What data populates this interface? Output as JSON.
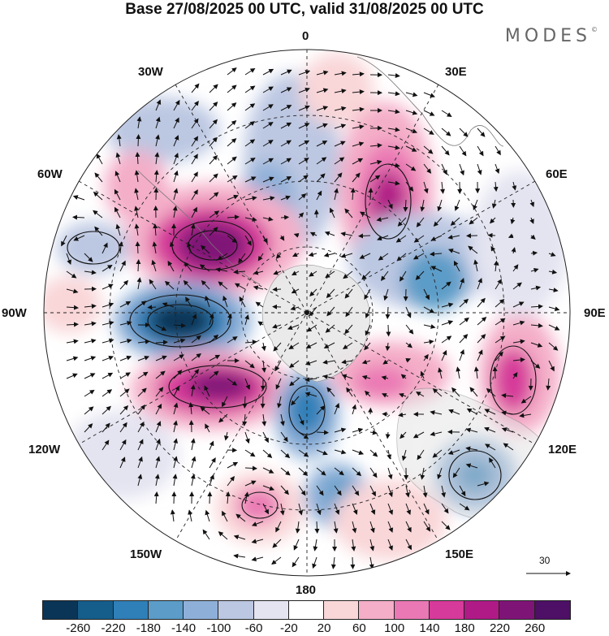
{
  "header": {
    "title": "Base 27/08/2025 00 UTC, valid 31/08/2025 00 UTC",
    "brand": "MODES"
  },
  "map": {
    "projection": "south polar stereographic",
    "longitude_labels": {
      "top": "0",
      "top_right": "30E",
      "right_upper": "60E",
      "right": "90E",
      "right_lower": "120E",
      "bottom_right": "150E",
      "bottom": "180",
      "bottom_left": "150W",
      "left_lower": "120W",
      "left": "90W",
      "left_upper": "60W",
      "top_left": "30W"
    },
    "vector_reference": "30"
  },
  "colorbar": {
    "ticks": [
      "-260",
      "-220",
      "-180",
      "-140",
      "-100",
      "-60",
      "-20",
      "20",
      "60",
      "100",
      "140",
      "180",
      "220",
      "260"
    ],
    "colors": [
      "#0b3556",
      "#155d8a",
      "#2f7fb8",
      "#5b9cc8",
      "#8eb0d8",
      "#bcc7e2",
      "#e4e4f1",
      "#ffffff",
      "#f9d6d8",
      "#f4aec8",
      "#ea78b4",
      "#d63a9a",
      "#b01a86",
      "#7f1477",
      "#4e0f66"
    ]
  }
}
